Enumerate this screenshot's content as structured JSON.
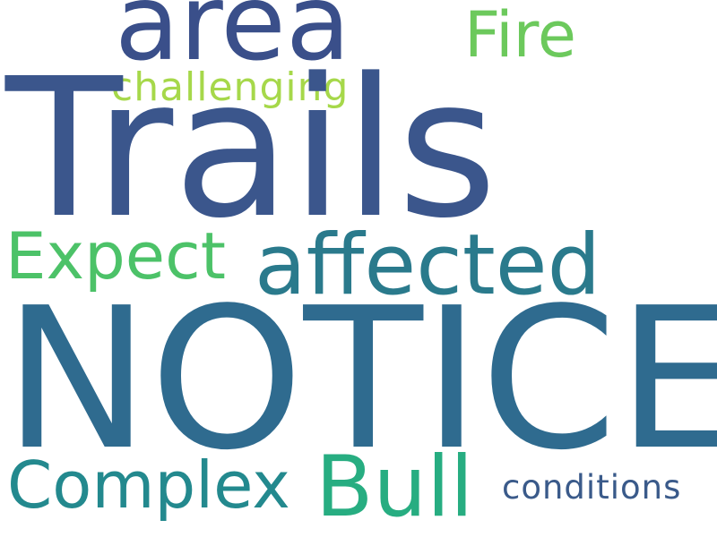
{
  "words": [
    {
      "id": "trails",
      "text": "Trails",
      "color": "#3b568c"
    },
    {
      "id": "notice",
      "text": "NOTICE",
      "color": "#2f6b8f"
    },
    {
      "id": "area",
      "text": "area",
      "color": "#3a4f8a"
    },
    {
      "id": "fire",
      "text": "Fire",
      "color": "#6cc95c"
    },
    {
      "id": "challenging",
      "text": "challenging",
      "color": "#a6d84a"
    },
    {
      "id": "affected",
      "text": "affected",
      "color": "#2a7a8c"
    },
    {
      "id": "expect",
      "text": "Expect",
      "color": "#4cc268"
    },
    {
      "id": "complex",
      "text": "Complex",
      "color": "#23898e"
    },
    {
      "id": "bull",
      "text": "Bull",
      "color": "#27ad81"
    },
    {
      "id": "conditions",
      "text": "conditions",
      "color": "#3a5a8a"
    }
  ]
}
